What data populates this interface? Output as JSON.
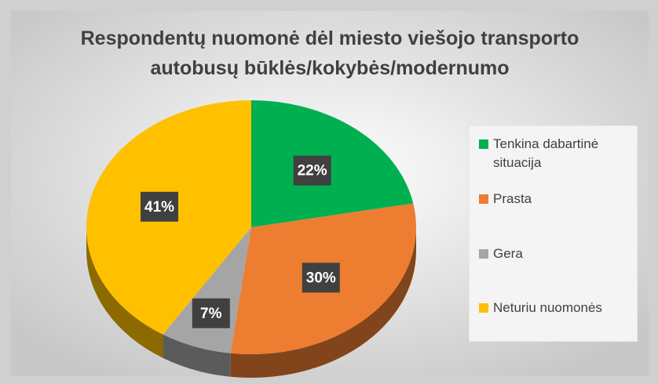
{
  "chart_data": {
    "type": "pie",
    "title": "Respondentų nuomonė dėl miesto viešojo transporto autobusų būklės/kokybės/modernumo",
    "categories": [
      "Tenkina dabartinė situacija",
      "Prasta",
      "Gera",
      "Neturiu nuomonės"
    ],
    "values": [
      22,
      30,
      7,
      41
    ],
    "value_labels": [
      "22%",
      "30%",
      "7%",
      "41%"
    ],
    "colors": [
      "#00b050",
      "#ed7d31",
      "#a5a5a5",
      "#ffc000"
    ],
    "legend": "right"
  }
}
